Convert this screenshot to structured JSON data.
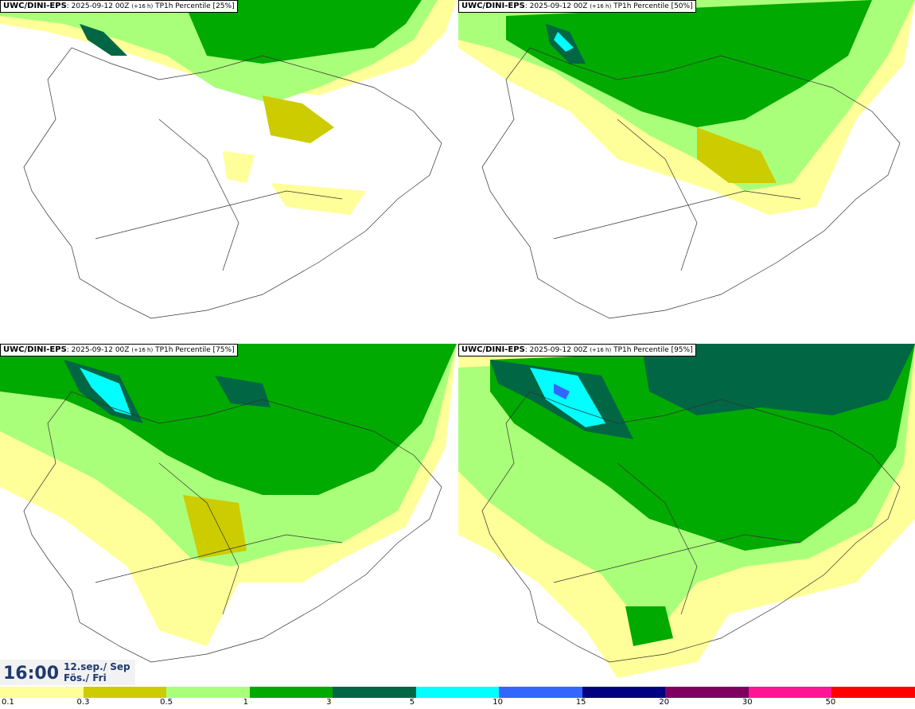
{
  "panels": [
    {
      "model": "UWC/DINI-EPS",
      "info": ": 2025-09-12 00Z ",
      "lead": "(+16 h)",
      "param": " TP1h Percentile [25%]"
    },
    {
      "model": "UWC/DINI-EPS",
      "info": ": 2025-09-12 00Z ",
      "lead": "(+16 h)",
      "param": " TP1h Percentile [50%]"
    },
    {
      "model": "UWC/DINI-EPS",
      "info": ": 2025-09-12 00Z ",
      "lead": "(+16 h)",
      "param": " TP1h Percentile [75%]"
    },
    {
      "model": "UWC/DINI-EPS",
      "info": ": 2025-09-12 00Z ",
      "lead": "(+16 h)",
      "param": " TP1h Percentile [95%]"
    }
  ],
  "valid": {
    "time": "16:00",
    "date_line1": "12.sep./ Sep",
    "date_line2": "Fös./ Fri"
  },
  "legend": {
    "colors": [
      "#ffff99",
      "#cccc00",
      "#aaff7a",
      "#00aa00",
      "#006644",
      "#00ffff",
      "#3366ff",
      "#000080",
      "#800060",
      "#ff1493",
      "#ff0000"
    ],
    "labels": [
      "0.1",
      "0.3",
      "0.5",
      "1",
      "3",
      "5",
      "10",
      "15",
      "20",
      "30",
      "50"
    ]
  }
}
